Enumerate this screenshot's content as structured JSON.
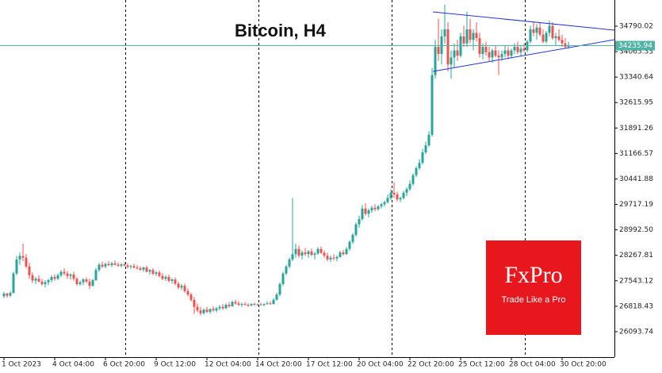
{
  "chart_data": {
    "type": "candlestick",
    "title": "Bitcoin, H4",
    "up_color": "#26a69a",
    "down_color": "#ef5350",
    "ylim": [
      25370,
      35535
    ],
    "yticks": [
      34790.02,
      34065.33,
      33340.64,
      32615.95,
      31891.26,
      31166.57,
      30441.88,
      29717.19,
      {
        "value": 28992.5,
        "label": "28992.50"
      },
      28267.81,
      27543.12,
      26818.43,
      26093.74
    ],
    "last_price": 34235.94,
    "categories": [
      "1 Oct 2023",
      null,
      null,
      null,
      null,
      null,
      null,
      null,
      null,
      null,
      null,
      null,
      null,
      null,
      null,
      null,
      "4 Oct 04:00",
      null,
      null,
      null,
      null,
      null,
      null,
      null,
      null,
      null,
      null,
      null,
      null,
      null,
      null,
      null,
      "6 Oct 20:00",
      null,
      null,
      null,
      null,
      null,
      null,
      null,
      null,
      null,
      null,
      null,
      null,
      null,
      null,
      null,
      "9 Oct 12:00",
      null,
      null,
      null,
      null,
      null,
      null,
      null,
      null,
      null,
      null,
      null,
      null,
      null,
      null,
      null,
      "12 Oct 04:00",
      null,
      null,
      null,
      null,
      null,
      null,
      null,
      null,
      null,
      null,
      null,
      null,
      null,
      null,
      null,
      "14 Oct 20:00",
      null,
      null,
      null,
      null,
      null,
      null,
      null,
      null,
      null,
      null,
      null,
      null,
      null,
      null,
      null,
      "17 Oct 12:00",
      null,
      null,
      null,
      null,
      null,
      null,
      null,
      null,
      null,
      null,
      null,
      null,
      null,
      null,
      null,
      "20 Oct 04:00",
      null,
      null,
      null,
      null,
      null,
      null,
      null,
      null,
      null,
      null,
      null,
      null,
      null,
      null,
      null,
      "22 Oct 20:00",
      null,
      null,
      null,
      null,
      null,
      null,
      null,
      null,
      null,
      null,
      null,
      null,
      null,
      null,
      null,
      "25 Oct 12:00",
      null,
      null,
      null,
      null,
      null,
      null,
      null,
      null,
      null,
      null,
      null,
      null,
      null,
      null,
      null,
      "28 Oct 04:00",
      null,
      null,
      null,
      null,
      null,
      null,
      null,
      null,
      null,
      null,
      null,
      null,
      null,
      null,
      null,
      "30 Oct 20:00",
      null,
      null
    ],
    "ohlc": [
      [
        27100,
        27230,
        27050,
        27180
      ],
      [
        27180,
        27200,
        27060,
        27120
      ],
      [
        27120,
        27250,
        27080,
        27200
      ],
      [
        27200,
        27800,
        27180,
        27750
      ],
      [
        27750,
        28250,
        27700,
        28150
      ],
      [
        28150,
        28350,
        28000,
        28250
      ],
      [
        28250,
        28600,
        28100,
        28200
      ],
      [
        28200,
        28300,
        27900,
        27950
      ],
      [
        27950,
        28050,
        27600,
        27700
      ],
      [
        27700,
        27780,
        27480,
        27550
      ],
      [
        27550,
        27650,
        27450,
        27600
      ],
      [
        27600,
        27700,
        27500,
        27520
      ],
      [
        27520,
        27600,
        27400,
        27450
      ],
      [
        27450,
        27560,
        27350,
        27500
      ],
      [
        27500,
        27600,
        27420,
        27560
      ],
      [
        27560,
        27700,
        27500,
        27650
      ],
      [
        27650,
        27720,
        27540,
        27600
      ],
      [
        27600,
        27750,
        27560,
        27700
      ],
      [
        27700,
        27850,
        27650,
        27800
      ],
      [
        27800,
        27900,
        27700,
        27750
      ],
      [
        27750,
        27820,
        27600,
        27680
      ],
      [
        27680,
        27760,
        27580,
        27720
      ],
      [
        27720,
        27800,
        27550,
        27600
      ],
      [
        27600,
        27650,
        27400,
        27450
      ],
      [
        27450,
        27550,
        27400,
        27500
      ],
      [
        27500,
        27620,
        27420,
        27580
      ],
      [
        27580,
        27640,
        27480,
        27520
      ],
      [
        27520,
        27600,
        27300,
        27400
      ],
      [
        27400,
        27600,
        27380,
        27560
      ],
      [
        27560,
        27900,
        27540,
        27850
      ],
      [
        27850,
        28050,
        27800,
        28000
      ],
      [
        28000,
        28080,
        27900,
        27950
      ],
      [
        27950,
        28060,
        27900,
        28020
      ],
      [
        28020,
        28100,
        27960,
        27990
      ],
      [
        27990,
        28080,
        27930,
        28040
      ],
      [
        28040,
        28120,
        27980,
        28000
      ],
      [
        28000,
        28060,
        27940,
        27970
      ],
      [
        27970,
        28050,
        27920,
        28010
      ],
      [
        28010,
        28070,
        27950,
        27980
      ],
      [
        27980,
        28040,
        27900,
        27940
      ],
      [
        27940,
        28000,
        27880,
        27960
      ],
      [
        27960,
        28030,
        27900,
        27920
      ],
      [
        27920,
        27990,
        27860,
        27900
      ],
      [
        27900,
        27960,
        27820,
        27860
      ],
      [
        27860,
        27950,
        27800,
        27920
      ],
      [
        27920,
        27980,
        27780,
        27800
      ],
      [
        27800,
        27880,
        27720,
        27850
      ],
      [
        27850,
        27900,
        27700,
        27740
      ],
      [
        27740,
        27820,
        27680,
        27780
      ],
      [
        27780,
        27840,
        27640,
        27680
      ],
      [
        27680,
        27760,
        27560,
        27600
      ],
      [
        27600,
        27700,
        27540,
        27650
      ],
      [
        27650,
        27720,
        27500,
        27540
      ],
      [
        27540,
        27620,
        27460,
        27580
      ],
      [
        27580,
        27640,
        27420,
        27460
      ],
      [
        27460,
        27520,
        27300,
        27350
      ],
      [
        27350,
        27450,
        27280,
        27400
      ],
      [
        27400,
        27460,
        27200,
        27250
      ],
      [
        27250,
        27320,
        27100,
        27150
      ],
      [
        27150,
        27200,
        26950,
        27000
      ],
      [
        27000,
        27080,
        26600,
        26800
      ],
      [
        26800,
        26900,
        26650,
        26700
      ],
      [
        26700,
        26800,
        26560,
        26620
      ],
      [
        26620,
        26760,
        26580,
        26720
      ],
      [
        26720,
        26800,
        26620,
        26660
      ],
      [
        26660,
        26760,
        26600,
        26740
      ],
      [
        26740,
        26820,
        26660,
        26700
      ],
      [
        26700,
        26790,
        26640,
        26760
      ],
      [
        26760,
        26850,
        26700,
        26800
      ],
      [
        26800,
        26880,
        26720,
        26760
      ],
      [
        26760,
        26900,
        26740,
        26860
      ],
      [
        26860,
        26940,
        26780,
        26820
      ],
      [
        26820,
        26980,
        26800,
        26940
      ],
      [
        26940,
        27000,
        26860,
        26900
      ],
      [
        26900,
        26960,
        26820,
        26860
      ],
      [
        26860,
        26920,
        26800,
        26880
      ],
      [
        26880,
        26940,
        26840,
        26860
      ],
      [
        26860,
        26900,
        26800,
        26840
      ],
      [
        26840,
        26900,
        26820,
        26880
      ],
      [
        26880,
        26920,
        26840,
        26860
      ],
      [
        26860,
        26900,
        26830,
        26870
      ],
      [
        26870,
        26920,
        26840,
        26850
      ],
      [
        26850,
        26900,
        26820,
        26880
      ],
      [
        26880,
        26960,
        26860,
        26900
      ],
      [
        26900,
        26960,
        26860,
        26880
      ],
      [
        26880,
        27050,
        26870,
        27000
      ],
      [
        27000,
        27200,
        26980,
        27150
      ],
      [
        27150,
        27500,
        27100,
        27450
      ],
      [
        27450,
        27800,
        27400,
        27750
      ],
      [
        27750,
        28000,
        27700,
        27950
      ],
      [
        27950,
        28200,
        27900,
        28150
      ],
      [
        28150,
        29900,
        28100,
        28300
      ],
      [
        28300,
        28600,
        28200,
        28450
      ],
      [
        28450,
        28550,
        28200,
        28260
      ],
      [
        28260,
        28400,
        28150,
        28350
      ],
      [
        28350,
        28480,
        28250,
        28300
      ],
      [
        28300,
        28420,
        28200,
        28380
      ],
      [
        28380,
        28460,
        28250,
        28280
      ],
      [
        28280,
        28360,
        28150,
        28320
      ],
      [
        28320,
        28500,
        28280,
        28450
      ],
      [
        28450,
        28520,
        28300,
        28340
      ],
      [
        28340,
        28400,
        28200,
        28260
      ],
      [
        28260,
        28340,
        28100,
        28150
      ],
      [
        28150,
        28260,
        28080,
        28200
      ],
      [
        28200,
        28300,
        28120,
        28180
      ],
      [
        28180,
        28260,
        28100,
        28220
      ],
      [
        28220,
        28400,
        28200,
        28350
      ],
      [
        28350,
        28420,
        28260,
        28300
      ],
      [
        28300,
        28500,
        28280,
        28450
      ],
      [
        28450,
        28700,
        28400,
        28650
      ],
      [
        28650,
        28900,
        28600,
        28850
      ],
      [
        28850,
        29200,
        28800,
        29150
      ],
      [
        29150,
        29400,
        29050,
        29300
      ],
      [
        29300,
        29700,
        29250,
        29600
      ],
      [
        29600,
        29750,
        29400,
        29450
      ],
      [
        29450,
        29600,
        29350,
        29550
      ],
      [
        29550,
        29680,
        29480,
        29620
      ],
      [
        29620,
        29720,
        29520,
        29580
      ],
      [
        29580,
        29700,
        29540,
        29660
      ],
      [
        29660,
        29760,
        29600,
        29720
      ],
      [
        29720,
        29820,
        29660,
        29780
      ],
      [
        29780,
        30000,
        29740,
        29900
      ],
      [
        29900,
        30150,
        29850,
        30050
      ],
      [
        30050,
        30350,
        29900,
        30000
      ],
      [
        30000,
        30080,
        29800,
        29860
      ],
      [
        29860,
        29940,
        29780,
        29900
      ],
      [
        29900,
        30100,
        29860,
        30050
      ],
      [
        30050,
        30200,
        29950,
        30150
      ],
      [
        30150,
        30400,
        30100,
        30300
      ],
      [
        30300,
        30600,
        30250,
        30550
      ],
      [
        30550,
        30800,
        30500,
        30750
      ],
      [
        30750,
        31000,
        30700,
        30900
      ],
      [
        30900,
        31300,
        30850,
        31200
      ],
      [
        31200,
        31500,
        31150,
        31400
      ],
      [
        31400,
        31800,
        31350,
        31700
      ],
      [
        31700,
        33600,
        31650,
        33400
      ],
      [
        33400,
        34400,
        33300,
        34200
      ],
      [
        34200,
        35000,
        33800,
        34000
      ],
      [
        34000,
        34700,
        33700,
        34500
      ],
      [
        34500,
        35400,
        34300,
        34700
      ],
      [
        34700,
        34900,
        33500,
        33700
      ],
      [
        33700,
        34100,
        33300,
        33900
      ],
      [
        33900,
        34300,
        33600,
        34100
      ],
      [
        34100,
        34400,
        33800,
        33950
      ],
      [
        33950,
        34600,
        33900,
        34500
      ],
      [
        34500,
        34800,
        34200,
        34300
      ],
      [
        34300,
        35200,
        34200,
        34700
      ],
      [
        34700,
        35000,
        34300,
        34400
      ],
      [
        34400,
        34700,
        34100,
        34600
      ],
      [
        34600,
        34900,
        34350,
        34450
      ],
      [
        34450,
        34600,
        33900,
        34000
      ],
      [
        34000,
        34300,
        33850,
        34200
      ],
      [
        34200,
        34350,
        33950,
        34050
      ],
      [
        34050,
        34200,
        33800,
        33900
      ],
      [
        33900,
        34150,
        33750,
        34100
      ],
      [
        34100,
        34250,
        33900,
        33950
      ],
      [
        33950,
        34100,
        33400,
        33900
      ],
      [
        33900,
        34100,
        33800,
        34000
      ],
      [
        34000,
        34250,
        33900,
        34100
      ],
      [
        34100,
        34200,
        33850,
        33950
      ],
      [
        33950,
        34150,
        33880,
        34100
      ],
      [
        34100,
        34300,
        34000,
        34200
      ],
      [
        34200,
        34350,
        34000,
        34050
      ],
      [
        34050,
        34250,
        33950,
        34150
      ],
      [
        34150,
        34300,
        34050,
        34100
      ],
      [
        34100,
        34400,
        34050,
        34350
      ],
      [
        34350,
        34800,
        34300,
        34700
      ],
      [
        34700,
        34900,
        34500,
        34600
      ],
      [
        34600,
        34850,
        34400,
        34750
      ],
      [
        34750,
        34900,
        34500,
        34550
      ],
      [
        34550,
        34700,
        34300,
        34350
      ],
      [
        34350,
        34650,
        34300,
        34600
      ],
      [
        34600,
        34950,
        34500,
        34800
      ],
      [
        34800,
        34900,
        34400,
        34450
      ],
      [
        34450,
        34600,
        34250,
        34500
      ],
      [
        34500,
        34700,
        34350,
        34400
      ],
      [
        34400,
        34550,
        34200,
        34300
      ],
      [
        34300,
        34450,
        34150,
        34200
      ],
      [
        34200,
        34350,
        34150,
        34235.94
      ]
    ]
  },
  "logo": {
    "name": "FxPro",
    "tagline": "Trade Like a Pro"
  }
}
